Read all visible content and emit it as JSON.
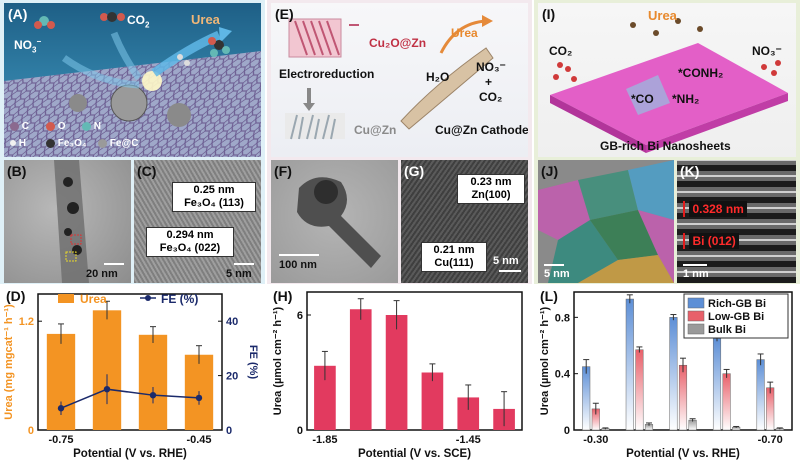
{
  "col1": {
    "A": {
      "label": "(A)",
      "product": "Urea",
      "no3": "NO",
      "no3_sub": "3",
      "no3_sup": "−",
      "co2": "CO",
      "co2_sub": "2",
      "legend": [
        {
          "sym": "C",
          "color": "#8b6a8f"
        },
        {
          "sym": "O",
          "color": "#d25a4e"
        },
        {
          "sym": "N",
          "color": "#63b9b5"
        },
        {
          "sym": "H",
          "color": "#f1f1f1"
        },
        {
          "sym": "Fe₃O₄",
          "color": "#333333"
        },
        {
          "sym": "Fe@C",
          "color": "#9a9a9a"
        }
      ]
    },
    "B": {
      "label": "(B)",
      "scale": "20 nm"
    },
    "C": {
      "label": "(C)",
      "d1": "0.25 nm",
      "p1": "Fe₃O₄ (113)",
      "d2": "0.294 nm",
      "p2": "Fe₃O₄ (022)",
      "scale": "5 nm"
    },
    "D": {
      "label": "(D)",
      "legend_bar": "Urea",
      "legend_line": "FE (%)",
      "chart_index": 0
    }
  },
  "col2": {
    "E": {
      "label": "(E)",
      "top": "Cu₂O@Zn",
      "product": "Urea",
      "step": "Electroreduction",
      "reagent1": "H₂O",
      "reagent2": "NO₃⁻",
      "plus": "+",
      "reagent3": "CO₂",
      "bottom": "Cu@Zn",
      "cathode": "Cu@Zn Cathode"
    },
    "F": {
      "label": "(F)",
      "scale": "100 nm"
    },
    "G": {
      "label": "(G)",
      "d1": "0.23 nm",
      "p1": "Zn(100)",
      "d2": "0.21 nm",
      "p2": "Cu(111)",
      "scale": "5 nm"
    },
    "H": {
      "label": "(H)",
      "chart_index": 1
    }
  },
  "col3": {
    "I": {
      "label": "(I)",
      "product": "Urea",
      "co2": "CO₂",
      "no3": "NO₃⁻",
      "int1": "*CONH₂",
      "int2": "*CO",
      "int3": "*NH₂",
      "caption": "GB-rich Bi Nanosheets"
    },
    "J": {
      "label": "(J)",
      "scale": "5 nm"
    },
    "K": {
      "label": "(K)",
      "d1": "0.328 nm",
      "p1": "Bi (012)",
      "scale": "1 nm"
    },
    "L": {
      "label": "(L)",
      "chart_index": 2,
      "legend": [
        "Rich-GB Bi",
        "Low-GB Bi",
        "Bulk Bi"
      ]
    }
  },
  "chart_data": [
    {
      "type": "bar",
      "panel": "D",
      "x": [
        -0.75,
        -0.65,
        -0.55,
        -0.45
      ],
      "categories": [
        "-0.75",
        "-0.65",
        "-0.55",
        "-0.45"
      ],
      "xtick_labels": [
        "-0.75",
        "",
        "",
        "-0.45"
      ],
      "xlabel": "Potential (V vs. RHE)",
      "ylabel": "Urea (mg mgcat⁻¹ h⁻¹)",
      "ylim": [
        0,
        1.5
      ],
      "yticks": [
        0,
        1.2
      ],
      "y2label": "FE (%)",
      "y2lim": [
        0,
        50
      ],
      "y2ticks": [
        0,
        20,
        40
      ],
      "series": [
        {
          "name": "Urea",
          "kind": "bar",
          "color": "#f39423",
          "values": [
            1.06,
            1.32,
            1.05,
            0.83
          ],
          "errors": [
            0.11,
            0.1,
            0.09,
            0.1
          ]
        },
        {
          "name": "FE (%)",
          "kind": "line",
          "color": "#1b2a6b",
          "values": [
            8.0,
            15.0,
            12.8,
            11.8
          ],
          "errors": [
            2.5,
            5.5,
            3.0,
            2.5
          ]
        }
      ]
    },
    {
      "type": "bar",
      "panel": "H",
      "x": [
        -1.85,
        -1.77,
        -1.69,
        -1.61,
        -1.53,
        -1.45
      ],
      "categories": [
        "-1.85",
        "-1.77",
        "-1.69",
        "-1.61",
        "-1.53",
        "-1.45"
      ],
      "xtick_labels": [
        "-1.85",
        "",
        "",
        "",
        "-1.45",
        ""
      ],
      "xlabel": "Potential (V vs. SCE)",
      "ylabel": "Urea (µmol cm⁻² h⁻¹)",
      "ylim": [
        0,
        7.2
      ],
      "yticks": [
        0,
        6
      ],
      "series": [
        {
          "name": "",
          "color": "#e23a5f",
          "values": [
            3.35,
            6.3,
            6.0,
            3.0,
            1.7,
            1.1
          ],
          "errors": [
            0.75,
            0.55,
            0.75,
            0.45,
            0.65,
            0.9
          ]
        }
      ]
    },
    {
      "type": "bar",
      "panel": "L",
      "categories": [
        "-0.30",
        "-0.40",
        "-0.50",
        "-0.60",
        "-0.70"
      ],
      "xtick_labels": [
        "-0.30",
        "",
        "",
        "",
        "-0.70"
      ],
      "xlabel": "Potential (V vs. RHE)",
      "ylabel": "Urea (µmol cm⁻² h⁻¹)",
      "ylim": [
        0,
        0.98
      ],
      "yticks": [
        0,
        0.4,
        0.8
      ],
      "legend_position": "top-right",
      "series": [
        {
          "name": "Rich-GB Bi",
          "color": "#5d8fd6",
          "values": [
            0.45,
            0.93,
            0.8,
            0.65,
            0.5
          ],
          "errors": [
            0.05,
            0.03,
            0.02,
            0.02,
            0.04
          ]
        },
        {
          "name": "Low-GB Bi",
          "color": "#e8606a",
          "values": [
            0.15,
            0.57,
            0.46,
            0.4,
            0.3
          ],
          "errors": [
            0.04,
            0.02,
            0.05,
            0.03,
            0.04
          ]
        },
        {
          "name": "Bulk Bi",
          "color": "#9a9a9a",
          "values": [
            0.01,
            0.04,
            0.07,
            0.02,
            0.01
          ],
          "errors": [
            0.005,
            0.01,
            0.01,
            0.005,
            0.005
          ]
        }
      ]
    }
  ]
}
